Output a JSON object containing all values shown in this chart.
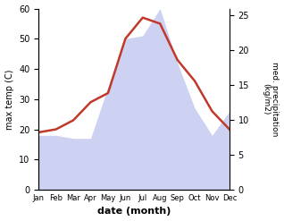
{
  "months": [
    "Jan",
    "Feb",
    "Mar",
    "Apr",
    "May",
    "Jun",
    "Jul",
    "Aug",
    "Sep",
    "Oct",
    "Nov",
    "Dec"
  ],
  "temp": [
    19,
    20,
    23,
    29,
    32,
    50,
    57,
    55,
    43,
    36,
    26,
    20
  ],
  "precip_left_scale": [
    18,
    18,
    17,
    17,
    34,
    50,
    51,
    60,
    42,
    27,
    18,
    26
  ],
  "precip_right": [
    8,
    8,
    7,
    7,
    14,
    21,
    22,
    26,
    18,
    11,
    7,
    10
  ],
  "temp_color": "#c0392b",
  "precip_fill_color": "#c5caf0",
  "ylabel_left": "max temp (C)",
  "ylabel_right": "med. precipitation\n(kg/m2)",
  "xlabel": "date (month)",
  "ylim_left": [
    0,
    60
  ],
  "ylim_right": [
    0,
    26
  ],
  "yticks_left": [
    0,
    10,
    20,
    30,
    40,
    50,
    60
  ],
  "yticks_right": [
    0,
    5,
    10,
    15,
    20,
    25
  ],
  "background_color": "#ffffff"
}
